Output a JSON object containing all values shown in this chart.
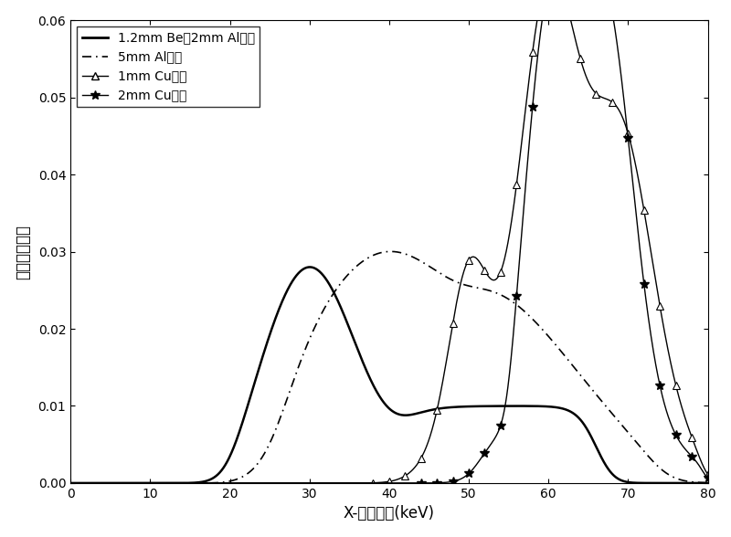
{
  "xlabel": "X-射线能量(keV)",
  "ylabel": "归一化输出值",
  "xlim": [
    0,
    80
  ],
  "ylim": [
    0,
    0.06
  ],
  "xticks": [
    0,
    10,
    20,
    30,
    40,
    50,
    60,
    70,
    80
  ],
  "yticks": [
    0,
    0.01,
    0.02,
    0.03,
    0.04,
    0.05,
    0.06
  ],
  "legend_labels": [
    "1.2mm Be和2mm Al内滤",
    "5mm Al外滤",
    "1mm Cu外滤",
    "2mm Cu外滤"
  ],
  "background_color": "#ffffff"
}
